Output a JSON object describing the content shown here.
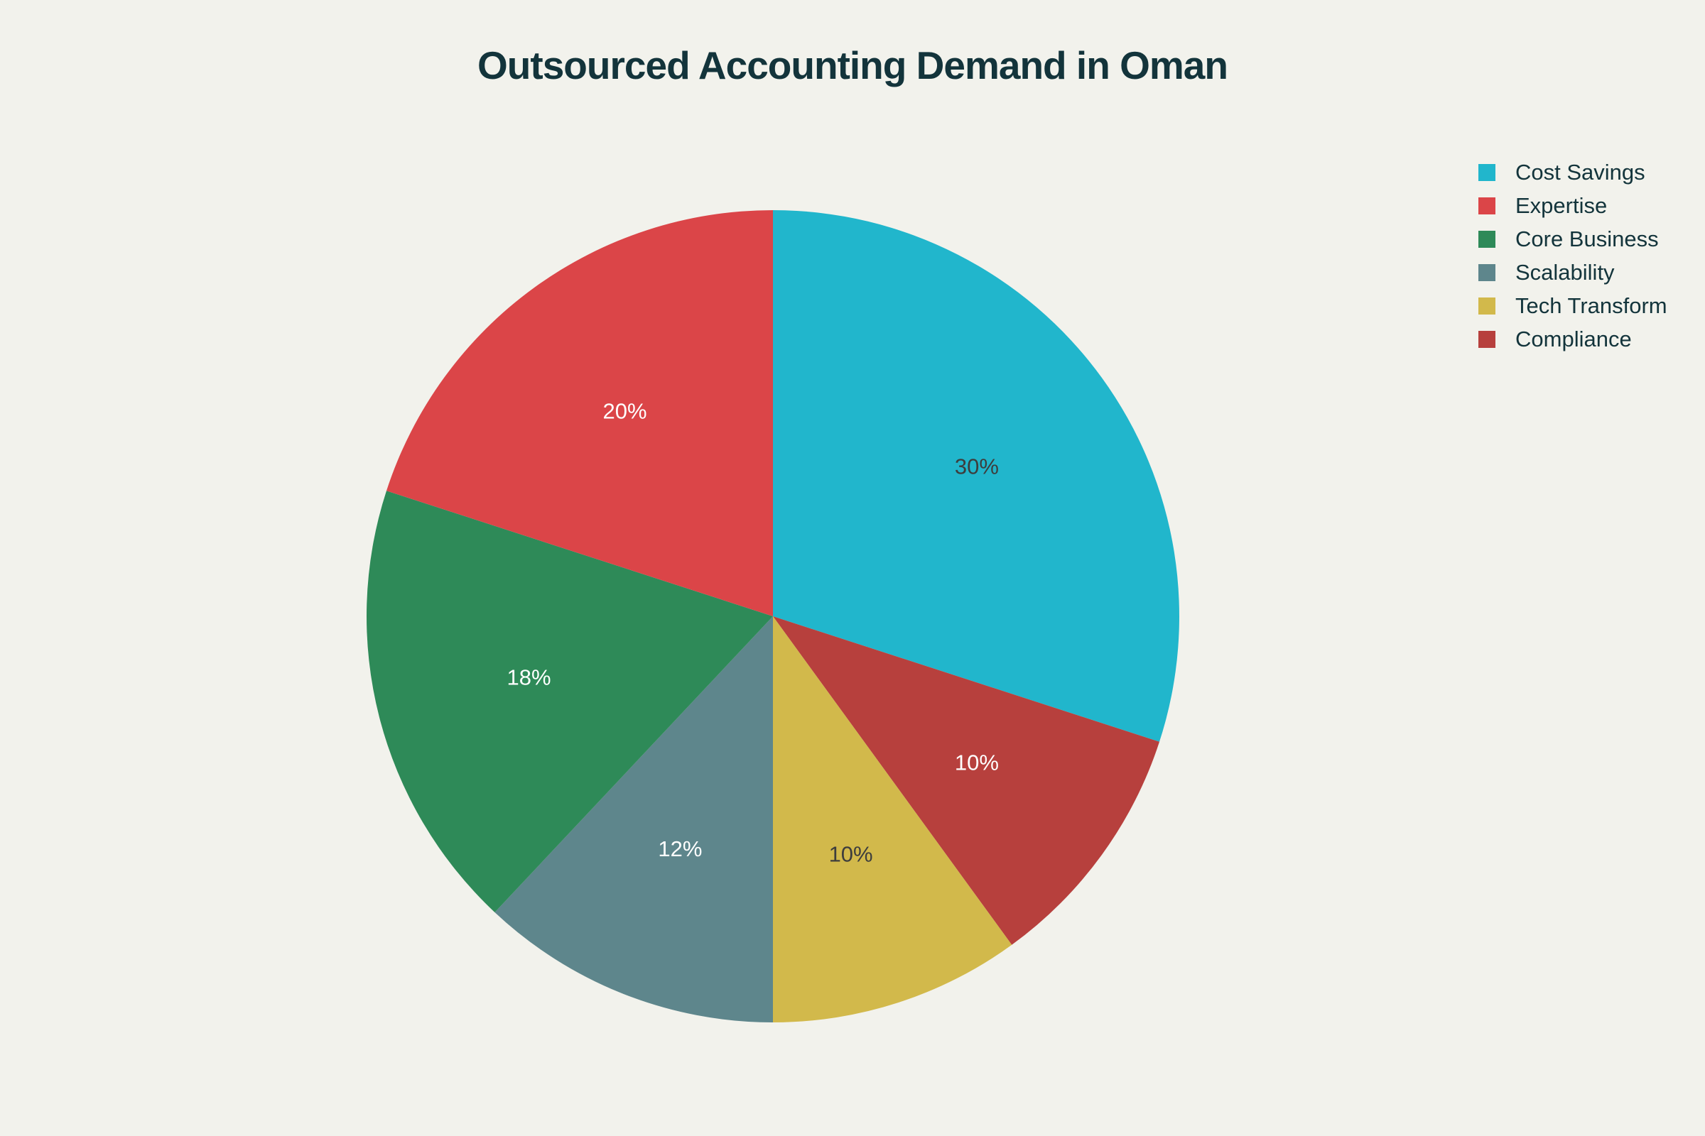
{
  "title": "Outsourced Accounting Demand in Oman",
  "legend": {
    "items": [
      {
        "label": "Cost Savings",
        "color": "#21b6cc"
      },
      {
        "label": "Expertise",
        "color": "#db4548"
      },
      {
        "label": "Core Business",
        "color": "#2e8a58"
      },
      {
        "label": "Scalability",
        "color": "#5e868c"
      },
      {
        "label": "Tech Transform",
        "color": "#d2b94b"
      },
      {
        "label": "Compliance",
        "color": "#b7403d"
      }
    ]
  },
  "chart_data": {
    "type": "pie",
    "title": "Outsourced Accounting Demand in Oman",
    "categories": [
      "Cost Savings",
      "Expertise",
      "Core Business",
      "Scalability",
      "Tech Transform",
      "Compliance"
    ],
    "values": [
      30,
      20,
      18,
      12,
      10,
      10
    ],
    "labels": [
      "30%",
      "20%",
      "18%",
      "12%",
      "10%",
      "10%"
    ],
    "colors": [
      "#21b6cc",
      "#db4548",
      "#2e8a58",
      "#5e868c",
      "#d2b94b",
      "#b7403d"
    ],
    "direction": "clockwise",
    "start_angle": "12 o'clock",
    "slice_order_clockwise": [
      "Cost Savings",
      "Compliance",
      "Tech Transform",
      "Scalability",
      "Core Business",
      "Expertise"
    ],
    "legend_position": "top-right"
  }
}
